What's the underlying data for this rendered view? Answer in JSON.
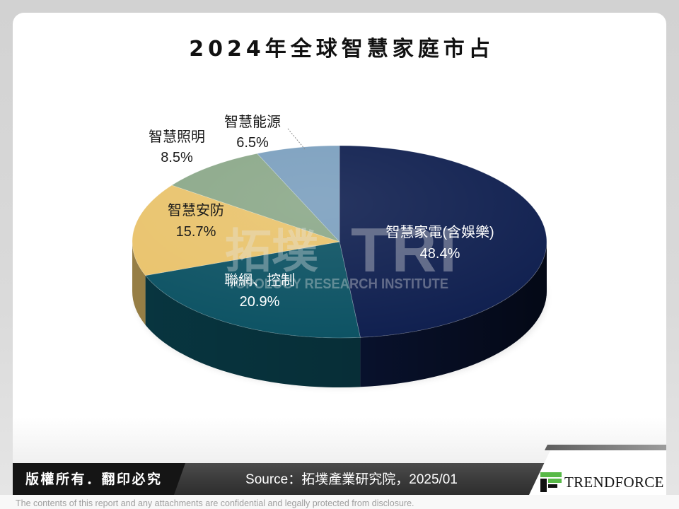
{
  "chart_data": {
    "type": "pie",
    "three_d": true,
    "title": "2024年全球智慧家庭市占",
    "categories": [
      "智慧家電(含娛樂)",
      "聯網、控制",
      "智慧安防",
      "智慧照明",
      "智慧能源"
    ],
    "values": [
      48.4,
      20.9,
      15.7,
      8.5,
      6.5
    ],
    "data_labels": [
      "48.4%",
      "20.9%",
      "15.7%",
      "8.5%",
      "6.5%"
    ],
    "colors": [
      "#0f1f4f",
      "#0c5263",
      "#e9c36c",
      "#8ba889",
      "#7b9fbe"
    ]
  },
  "watermark": {
    "cn": "拓墣",
    "mark": "TRI",
    "en": "TOPOLOGY RESEARCH INSTITUTE"
  },
  "footer": {
    "copyright": "版權所有．翻印必究",
    "source": "Source：拓墣產業研究院，2025/01",
    "logo_text": "TRENDFORCE",
    "disclaimer": "The contents of this report and any attachments are confidential and legally protected from disclosure."
  }
}
